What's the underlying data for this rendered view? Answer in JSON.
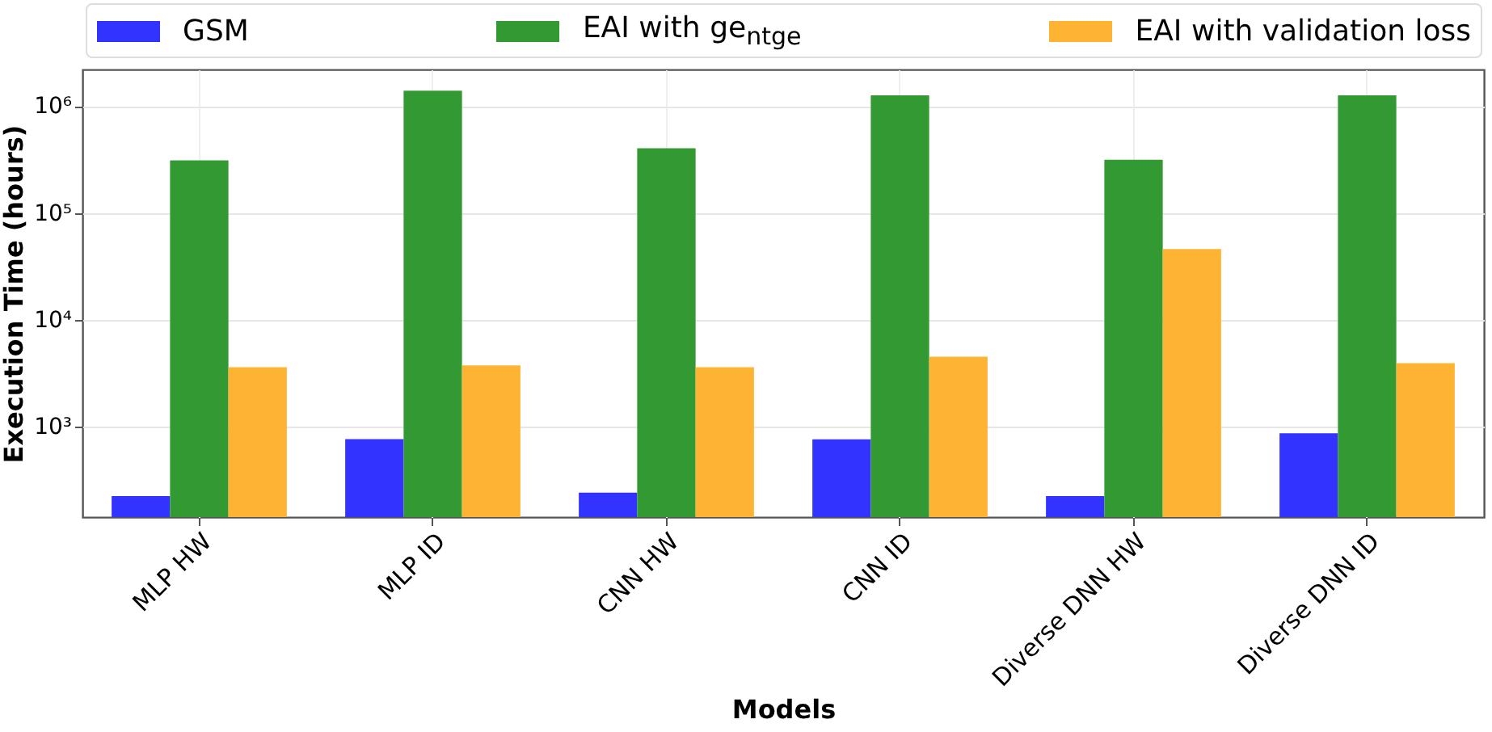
{
  "chart_data": {
    "type": "bar",
    "xlabel": "Models",
    "ylabel": "Execution Time (hours)",
    "categories": [
      "MLP HW",
      "MLP ID",
      "CNN HW",
      "CNN ID",
      "Diverse DNN HW",
      "Diverse DNN ID"
    ],
    "series": [
      {
        "name": "GSM",
        "color": "#3333ff",
        "values": [
          224,
          764,
          241,
          760,
          224,
          869
        ]
      },
      {
        "name": "EAI with ge$_{ntge}$",
        "color": "#339933",
        "values": [
          311000,
          1390000,
          403000,
          1260000,
          315000,
          1260000
        ]
      },
      {
        "name": "EAI with validation loss",
        "color": "#ffb333",
        "values": [
          3600,
          3740,
          3600,
          4510,
          45900,
          3920
        ]
      }
    ],
    "log": true,
    "ylim": [
      142.5,
      2200000
    ],
    "yticks": [
      {
        "value": 1000,
        "label": "10³"
      },
      {
        "value": 10000,
        "label": "10⁴"
      },
      {
        "value": 100000,
        "label": "10⁵"
      },
      {
        "value": 1000000,
        "label": "10⁶"
      }
    ],
    "grid": true,
    "legend": "top"
  }
}
